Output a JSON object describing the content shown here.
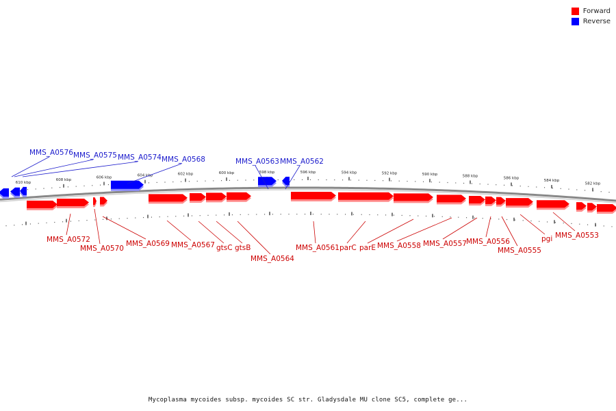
{
  "colors": {
    "forward": "#ff0000",
    "forward_shadow": "#ff8c8c",
    "reverse": "#0000ff",
    "reverse_shadow": "#8c8cff",
    "backbone": "#888888",
    "forward_label": "#cc0000",
    "reverse_label": "#1a1acc"
  },
  "legend": [
    {
      "label": "Forward",
      "color": "#ff0000"
    },
    {
      "label": "Reverse",
      "color": "#0000ff"
    }
  ],
  "caption": "Mycoplasma mycoides subsp. mycoides SC str. Gladysdale MU clone SC5, complete ge...",
  "scale": {
    "tick_labels": [
      "610 kbp",
      "608 kbp",
      "606 kbp",
      "604 kbp",
      "602 kbp",
      "600 kbp",
      "598 kbp",
      "596 kbp",
      "594 kbp",
      "592 kbp",
      "590 kbp",
      "588 kbp",
      "586 kbp",
      "584 kbp",
      "582 kbp"
    ]
  },
  "reverse_genes": [
    {
      "label": "MMS_A0576"
    },
    {
      "label": "MMS_A0575"
    },
    {
      "label": "MMS_A0574"
    },
    {
      "label": "MMS_A0568"
    },
    {
      "label": "MMS_A0563"
    },
    {
      "label": "MMS_A0562"
    }
  ],
  "forward_genes": [
    {
      "label": "MMS_A0572"
    },
    {
      "label": "MMS_A0570"
    },
    {
      "label": "MMS_A0569"
    },
    {
      "label": "MMS_A0567"
    },
    {
      "label": "gtsC"
    },
    {
      "label": "gtsB"
    },
    {
      "label": "MMS_A0564"
    },
    {
      "label": "MMS_A0561"
    },
    {
      "label": "parC"
    },
    {
      "label": "parE"
    },
    {
      "label": "MMS_A0558"
    },
    {
      "label": "MMS_A0557"
    },
    {
      "label": "MMS_A0556"
    },
    {
      "label": "MMS_A0555"
    },
    {
      "label": "pgi"
    },
    {
      "label": "MMS_A0553"
    }
  ]
}
